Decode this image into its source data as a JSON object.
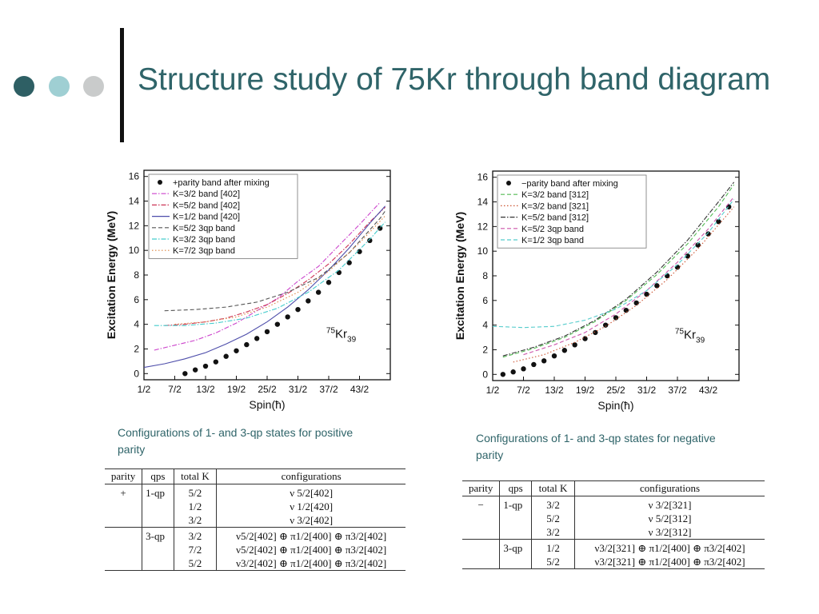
{
  "slide": {
    "title": "Structure study of 75Kr through band diagram",
    "bullet_colors": [
      "#2e5f64",
      "#9fcfd3",
      "#c9cbcb"
    ]
  },
  "captions": {
    "left": "Configurations of 1-  and  3-qp states for positive parity",
    "right": "Configurations of 1-  and  3-qp states for negative parity"
  },
  "chart_data": [
    {
      "type": "line",
      "xlabel": "Spin(ħ)",
      "ylabel": "Excitation Energy (MeV)",
      "x_ticks": [
        "1/2",
        "7/2",
        "13/2",
        "19/2",
        "25/2",
        "31/2",
        "37/2",
        "43/2"
      ],
      "y_ticks": [
        "0",
        "2",
        "4",
        "6",
        "8",
        "10",
        "12",
        "14",
        "16"
      ],
      "xlim": [
        0.5,
        24.5
      ],
      "ylim": [
        -0.5,
        16.5
      ],
      "nucleus": {
        "mass": "75",
        "symbol": "Kr",
        "neutrons": "39"
      },
      "legend_position": "top-left",
      "series": [
        {
          "name": "+parity band after mixing",
          "style": "dots",
          "color": "#111111",
          "x": [
            4.5,
            5.5,
            6.5,
            7.5,
            8.5,
            9.5,
            10.5,
            11.5,
            12.5,
            13.5,
            14.5,
            15.5,
            16.5,
            17.5,
            18.5,
            19.5,
            20.5,
            21.5,
            22.5,
            23.5
          ],
          "y": [
            0.0,
            0.3,
            0.6,
            0.95,
            1.4,
            1.85,
            2.35,
            2.85,
            3.4,
            4.0,
            4.6,
            5.2,
            5.9,
            6.6,
            7.4,
            8.2,
            9.0,
            9.9,
            10.8,
            11.8
          ]
        },
        {
          "name": "K=3/2 band [402]",
          "style": "dash-dot",
          "color": "#cc44cc",
          "x": [
            1.5,
            3.5,
            5.5,
            7.5,
            9.5,
            11.5,
            13.5,
            15.5,
            17.5,
            19.5,
            21.5,
            23.5
          ],
          "y": [
            1.9,
            2.3,
            2.7,
            3.3,
            4.1,
            5.1,
            6.1,
            7.5,
            8.7,
            10.4,
            12.1,
            13.9
          ]
        },
        {
          "name": "K=5/2 band [402]",
          "style": "dash-dot",
          "color": "#cc3355",
          "x": [
            2.5,
            4.5,
            6.5,
            8.5,
            10.5,
            12.5,
            14.5,
            16.5,
            18.5,
            20.5,
            22.5,
            24.0
          ],
          "y": [
            3.9,
            4.0,
            4.2,
            4.5,
            5.0,
            5.6,
            6.5,
            7.6,
            8.9,
            10.5,
            12.3,
            13.5
          ]
        },
        {
          "name": "K=1/2 band [420]",
          "style": "solid",
          "color": "#4d4daa",
          "x": [
            0.5,
            2.5,
            4.5,
            6.5,
            8.5,
            10.5,
            12.5,
            14.5,
            16.5,
            18.5,
            20.5,
            22.5,
            24.0
          ],
          "y": [
            0.5,
            0.8,
            1.2,
            1.7,
            2.4,
            3.2,
            4.2,
            5.4,
            6.8,
            8.4,
            10.2,
            12.2,
            13.6
          ]
        },
        {
          "name": "K=5/2 3qp band",
          "style": "dashed",
          "color": "#555555",
          "x": [
            2.5,
            5.5,
            8.5,
            11.5,
            14.5,
            17.5,
            20.5,
            23.5,
            24.0
          ],
          "y": [
            5.1,
            5.2,
            5.4,
            5.8,
            6.6,
            7.8,
            9.8,
            12.6,
            13.2
          ]
        },
        {
          "name": "K=3/2 3qp band",
          "style": "dash-dot",
          "color": "#44cccc",
          "x": [
            1.5,
            4.5,
            7.5,
            10.5,
            13.5,
            16.5,
            19.5,
            22.5,
            24.0
          ],
          "y": [
            3.9,
            3.9,
            4.1,
            4.5,
            5.3,
            6.6,
            8.4,
            10.9,
            12.3
          ]
        },
        {
          "name": "K=7/2 3qp band",
          "style": "dotted",
          "color": "#dd8844",
          "x": [
            3.5,
            6.5,
            9.5,
            12.5,
            15.5,
            18.5,
            21.5,
            24.0
          ],
          "y": [
            4.0,
            4.2,
            4.6,
            5.4,
            6.6,
            8.3,
            10.6,
            12.8
          ]
        }
      ]
    },
    {
      "type": "line",
      "xlabel": "Spin(ħ)",
      "ylabel": "Excitation Energy (MeV)",
      "x_ticks": [
        "1/2",
        "7/2",
        "13/2",
        "19/2",
        "25/2",
        "31/2",
        "37/2",
        "43/2"
      ],
      "y_ticks": [
        "0",
        "2",
        "4",
        "6",
        "8",
        "10",
        "12",
        "14",
        "16"
      ],
      "xlim": [
        0.5,
        24.5
      ],
      "ylim": [
        -0.5,
        16.5
      ],
      "nucleus": {
        "mass": "75",
        "symbol": "Kr",
        "neutrons": "39"
      },
      "legend_position": "top-left",
      "series": [
        {
          "name": "−parity band after mixing",
          "style": "dots",
          "color": "#111111",
          "x": [
            1.5,
            2.5,
            3.5,
            4.5,
            5.5,
            6.5,
            7.5,
            8.5,
            9.5,
            10.5,
            11.5,
            12.5,
            13.5,
            14.5,
            15.5,
            16.5,
            17.5,
            18.5,
            19.5,
            20.5,
            21.5,
            22.5,
            23.5
          ],
          "y": [
            0.0,
            0.2,
            0.45,
            0.8,
            1.1,
            1.5,
            1.95,
            2.4,
            2.9,
            3.4,
            4.0,
            4.6,
            5.2,
            5.8,
            6.5,
            7.2,
            8.0,
            8.7,
            9.6,
            10.5,
            11.4,
            12.4,
            13.6
          ]
        },
        {
          "name": "K=3/2 band [312]",
          "style": "dashed",
          "color": "#55bb55",
          "x": [
            1.5,
            4.5,
            7.5,
            10.5,
            13.5,
            16.5,
            19.5,
            22.5,
            24.0
          ],
          "y": [
            1.4,
            2.1,
            3.0,
            4.3,
            6.0,
            8.1,
            10.6,
            13.6,
            15.4
          ]
        },
        {
          "name": "K=3/2 band [321]",
          "style": "dotted",
          "color": "#cc5533",
          "x": [
            2.5,
            5.5,
            8.5,
            11.5,
            14.5,
            17.5,
            20.5,
            23.5,
            24.0
          ],
          "y": [
            1.0,
            1.6,
            2.6,
            3.9,
            5.6,
            7.7,
            10.2,
            13.1,
            13.6
          ]
        },
        {
          "name": "K=5/2 band [312]",
          "style": "dash-dot",
          "color": "#333333",
          "x": [
            1.5,
            4.5,
            7.5,
            10.5,
            13.5,
            16.5,
            19.5,
            22.5,
            24.0
          ],
          "y": [
            1.5,
            2.2,
            3.1,
            4.4,
            6.1,
            8.3,
            10.9,
            14.0,
            15.6
          ]
        },
        {
          "name": "K=5/2 3qp band",
          "style": "dashed",
          "color": "#cc55aa",
          "x": [
            3.5,
            6.5,
            9.5,
            12.5,
            15.5,
            18.5,
            21.5,
            24.0
          ],
          "y": [
            1.6,
            2.4,
            3.4,
            4.9,
            6.8,
            9.1,
            11.8,
            14.4
          ]
        },
        {
          "name": "K=1/2 3qp band",
          "style": "dashed",
          "color": "#55cccc",
          "x": [
            0.5,
            3.5,
            6.5,
            9.5,
            12.5,
            15.5,
            18.5,
            21.5,
            24.0
          ],
          "y": [
            3.9,
            3.8,
            3.9,
            4.4,
            5.3,
            6.8,
            8.9,
            11.5,
            14.2
          ]
        }
      ]
    }
  ],
  "tables": {
    "headers": {
      "parity": "parity",
      "qps": "qps",
      "total_k": "total K",
      "configurations": "configurations"
    },
    "positive": {
      "parity": "+",
      "one_qp": {
        "label": "1-qp",
        "k": [
          "5/2",
          "1/2",
          "3/2"
        ],
        "config": [
          "ν 5/2[402]",
          "ν 1/2[420]",
          "ν 3/2[402]"
        ]
      },
      "three_qp": {
        "label": "3-qp",
        "k": [
          "3/2",
          "7/2",
          "5/2"
        ],
        "config": [
          "ν5/2[402] ⊕ π1/2[400] ⊕ π3/2[402]",
          "ν5/2[402] ⊕ π1/2[400] ⊕ π3/2[402]",
          "ν3/2[402] ⊕ π1/2[400] ⊕ π3/2[402]"
        ]
      }
    },
    "negative": {
      "parity": "−",
      "one_qp": {
        "label": "1-qp",
        "k": [
          "3/2",
          "5/2",
          "3/2"
        ],
        "config": [
          "ν 3/2[321]",
          "ν 5/2[312]",
          "ν 3/2[312]"
        ]
      },
      "three_qp": {
        "label": "3-qp",
        "k": [
          "1/2",
          "5/2"
        ],
        "config": [
          "ν3/2[321] ⊕ π1/2[400] ⊕ π3/2[402]",
          "ν3/2[321] ⊕ π1/2[400] ⊕ π3/2[402]"
        ]
      }
    }
  }
}
